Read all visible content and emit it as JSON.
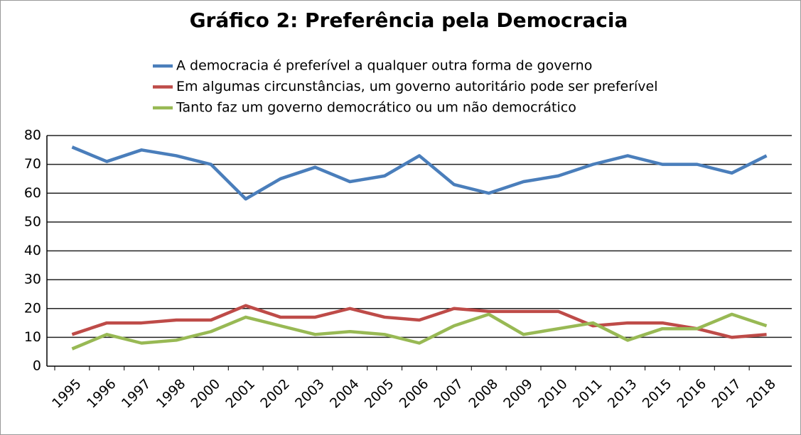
{
  "chart_data": {
    "type": "line",
    "title": "Gráfico 2: Preferência pela Democracia",
    "categories": [
      "1995",
      "1996",
      "1997",
      "1998",
      "2000",
      "2001",
      "2002",
      "2003",
      "2004",
      "2005",
      "2006",
      "2007",
      "2008",
      "2009",
      "2010",
      "2011",
      "2013",
      "2015",
      "2016",
      "2017",
      "2018"
    ],
    "series": [
      {
        "name": "A democracia é preferível a qualquer outra forma de governo",
        "color": "#4a7ebb",
        "values": [
          76,
          71,
          75,
          73,
          70,
          58,
          65,
          69,
          64,
          66,
          73,
          63,
          60,
          64,
          66,
          70,
          73,
          70,
          70,
          67,
          73
        ]
      },
      {
        "name": "Em algumas circunstâncias, um governo autoritário pode ser preferível",
        "color": "#be4b48",
        "values": [
          11,
          15,
          15,
          16,
          16,
          21,
          17,
          17,
          20,
          17,
          16,
          20,
          19,
          19,
          19,
          14,
          15,
          15,
          13,
          10,
          11
        ]
      },
      {
        "name": "Tanto faz um governo democrático ou um não democrático",
        "color": "#98b954",
        "values": [
          6,
          11,
          8,
          9,
          12,
          17,
          14,
          11,
          12,
          11,
          8,
          14,
          18,
          11,
          13,
          15,
          9,
          13,
          13,
          18,
          14
        ]
      }
    ],
    "ylim": [
      0,
      80
    ],
    "yticks": [
      0,
      10,
      20,
      30,
      40,
      50,
      60,
      70,
      80
    ],
    "grid": true,
    "legend": "top"
  }
}
